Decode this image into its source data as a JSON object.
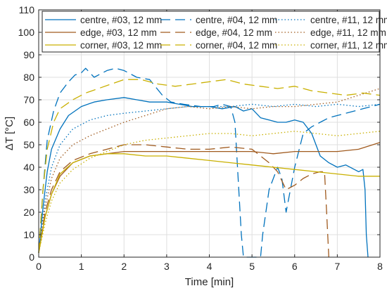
{
  "chart_data": {
    "type": "line",
    "xlabel": "Time [min]",
    "ylabel": "ΔT [°C]",
    "xlim": [
      0,
      8
    ],
    "ylim": [
      0,
      110
    ],
    "xticks": [
      "0",
      "1",
      "2",
      "3",
      "4",
      "5",
      "6",
      "7",
      "8"
    ],
    "yticks": [
      "0",
      "10",
      "20",
      "30",
      "40",
      "50",
      "60",
      "70",
      "80",
      "90",
      "100",
      "110"
    ],
    "grid": true,
    "legend_placement": "top-right",
    "colors": {
      "centre": "#0072BD",
      "edge": "#A05A1E",
      "corner": "#C9B000"
    },
    "series": [
      {
        "name": "centre, #03, 12 mm",
        "color": "centre",
        "style": "solid",
        "x": [
          0,
          0.1,
          0.2,
          0.3,
          0.5,
          0.7,
          1.0,
          1.3,
          1.6,
          2.0,
          2.3,
          2.6,
          3.0,
          3.3,
          3.6,
          4.0,
          4.3,
          4.6,
          4.8,
          5.0,
          5.2,
          5.4,
          5.6,
          5.8,
          6.0,
          6.2,
          6.4,
          6.6,
          6.8,
          7.0,
          7.2,
          7.4,
          7.5,
          7.6,
          7.65,
          7.68,
          7.72
        ],
        "y": [
          2,
          22,
          38,
          48,
          57,
          63,
          67,
          69,
          70,
          71,
          70,
          69,
          69,
          68,
          67,
          67,
          66,
          67,
          65,
          66,
          62,
          61,
          60,
          60,
          61,
          60,
          55,
          45,
          42,
          40,
          41,
          39,
          38,
          39,
          30,
          10,
          0
        ]
      },
      {
        "name": "centre, #04, 12 mm",
        "color": "centre",
        "style": "dashed",
        "x": [
          0,
          0.1,
          0.2,
          0.35,
          0.5,
          0.7,
          0.85,
          1.0,
          1.1,
          1.3,
          1.6,
          1.8,
          2.0,
          2.3,
          2.6,
          2.9,
          3.1,
          3.4,
          3.8,
          4.1,
          4.3,
          4.5,
          4.6,
          4.75,
          4.8,
          5.2,
          5.25,
          5.4,
          5.6,
          5.7,
          5.8,
          5.9,
          6.0,
          6.2,
          6.4,
          6.6,
          6.8,
          7.0,
          7.2,
          7.4,
          7.6,
          7.8,
          8.0
        ],
        "y": [
          2,
          30,
          52,
          65,
          73,
          78,
          81,
          82,
          84,
          80,
          83,
          84,
          83,
          80,
          79,
          72,
          69,
          68,
          67,
          67,
          68,
          67,
          60,
          10,
          0,
          0,
          10,
          30,
          40,
          35,
          20,
          30,
          40,
          55,
          58,
          60,
          62,
          63,
          64,
          65,
          66,
          67,
          68
        ]
      },
      {
        "name": "centre, #11, 12 mm",
        "color": "centre",
        "style": "dotted",
        "x": [
          0,
          0.15,
          0.3,
          0.5,
          0.8,
          1.2,
          1.6,
          2.0,
          2.5,
          3.0,
          3.5,
          4.0,
          4.5,
          5.0,
          5.5,
          6.0,
          6.5,
          7.0,
          7.5,
          8.0
        ],
        "y": [
          2,
          25,
          40,
          50,
          57,
          61,
          63,
          64,
          65,
          66,
          67,
          67,
          67,
          68,
          67,
          68,
          67,
          68,
          67,
          68
        ]
      },
      {
        "name": "edge, #03, 12 mm",
        "color": "edge",
        "style": "solid",
        "x": [
          0,
          0.15,
          0.3,
          0.5,
          0.8,
          1.2,
          1.6,
          2.0,
          2.5,
          3.0,
          3.5,
          4.0,
          4.5,
          5.0,
          5.5,
          6.0,
          6.5,
          7.0,
          7.5,
          8.0
        ],
        "y": [
          2,
          18,
          28,
          36,
          42,
          45,
          46,
          47,
          47,
          47,
          47,
          47,
          47,
          47,
          46,
          47,
          47,
          47,
          48,
          51
        ]
      },
      {
        "name": "edge, #04, 12 mm",
        "color": "edge",
        "style": "dashed",
        "x": [
          0,
          0.15,
          0.3,
          0.5,
          0.8,
          1.2,
          1.6,
          2.0,
          2.5,
          3.0,
          3.5,
          4.0,
          4.5,
          5.0,
          5.4,
          5.6,
          5.8,
          6.0,
          6.2,
          6.4,
          6.6,
          6.7,
          6.75,
          6.8
        ],
        "y": [
          2,
          20,
          30,
          38,
          43,
          46,
          48,
          50,
          50,
          49,
          48,
          48,
          49,
          48,
          42,
          38,
          30,
          32,
          35,
          37,
          38,
          38,
          20,
          0
        ]
      },
      {
        "name": "edge, #11, 12 mm",
        "color": "edge",
        "style": "dotted",
        "x": [
          0,
          0.15,
          0.3,
          0.5,
          0.8,
          1.2,
          1.6,
          2.0,
          2.5,
          3.0,
          3.5,
          4.0,
          4.5,
          5.0,
          5.5,
          6.0,
          6.5,
          7.0,
          7.5,
          8.0
        ],
        "y": [
          2,
          22,
          35,
          44,
          50,
          54,
          57,
          60,
          63,
          66,
          67,
          66,
          67,
          66,
          67,
          67,
          68,
          69,
          72,
          75
        ]
      },
      {
        "name": "corner, #03, 12 mm",
        "color": "corner",
        "style": "solid",
        "x": [
          0,
          0.15,
          0.3,
          0.5,
          0.8,
          1.2,
          1.6,
          2.0,
          2.5,
          3.0,
          3.5,
          4.0,
          4.5,
          5.0,
          5.5,
          6.0,
          6.5,
          7.0,
          7.5,
          8.0
        ],
        "y": [
          2,
          18,
          28,
          37,
          42,
          45,
          46,
          46,
          45,
          45,
          44,
          43,
          42,
          41,
          40,
          39,
          38,
          37,
          36,
          36
        ]
      },
      {
        "name": "corner, #04, 12 mm",
        "color": "corner",
        "style": "dashed",
        "x": [
          0,
          0.1,
          0.2,
          0.35,
          0.5,
          0.8,
          1.1,
          1.4,
          1.7,
          2.0,
          2.4,
          2.8,
          3.2,
          3.6,
          4.0,
          4.4,
          4.8,
          5.2,
          5.6,
          6.0,
          6.4,
          6.8,
          7.2,
          7.6,
          8.0
        ],
        "y": [
          2,
          30,
          48,
          60,
          66,
          70,
          73,
          75,
          77,
          79,
          79,
          77,
          76,
          77,
          78,
          79,
          77,
          76,
          75,
          76,
          74,
          73,
          72,
          73,
          72
        ]
      },
      {
        "name": "corner, #11, 12 mm",
        "color": "corner",
        "style": "dotted",
        "x": [
          0,
          0.15,
          0.3,
          0.5,
          0.8,
          1.2,
          1.6,
          2.0,
          2.5,
          3.0,
          3.5,
          4.0,
          4.5,
          5.0,
          5.5,
          6.0,
          6.5,
          7.0,
          7.5,
          8.0
        ],
        "y": [
          2,
          15,
          25,
          33,
          39,
          44,
          47,
          50,
          52,
          53,
          54,
          55,
          55,
          54,
          55,
          56,
          55,
          54,
          55,
          56
        ]
      }
    ],
    "legend_columns": 3
  }
}
